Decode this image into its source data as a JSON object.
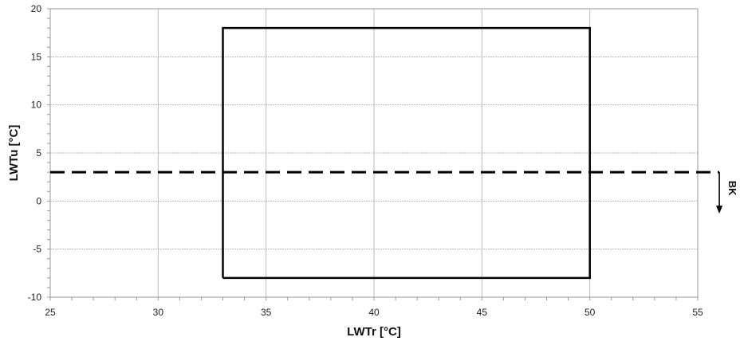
{
  "chart_data": {
    "type": "line",
    "title": "",
    "xlabel": "LWTr [°C]",
    "ylabel": "LWTu [°C]",
    "xlim": [
      25,
      55
    ],
    "ylim": [
      -10,
      20
    ],
    "xticks": [
      25,
      30,
      35,
      40,
      45,
      50,
      55
    ],
    "yticks": [
      -10,
      -5,
      0,
      5,
      10,
      15,
      20
    ],
    "grid": true,
    "series": [
      {
        "style": "solid",
        "color": "#000000",
        "points": [
          [
            33,
            -8
          ],
          [
            33,
            18
          ],
          [
            50,
            18
          ],
          [
            50,
            -8
          ],
          [
            33,
            -8
          ]
        ]
      },
      {
        "style": "dashed",
        "color": "#000000",
        "points": [
          [
            25,
            3
          ],
          [
            56,
            3
          ]
        ]
      }
    ],
    "annotations": [
      {
        "text": "BK",
        "x": 56,
        "y": 3,
        "arrow": "down"
      }
    ]
  }
}
